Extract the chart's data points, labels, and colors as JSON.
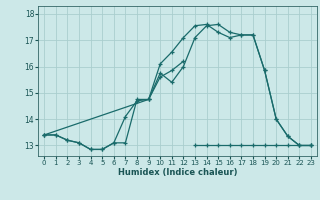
{
  "xlabel": "Humidex (Indice chaleur)",
  "bg_color": "#cce8e8",
  "grid_color": "#aacece",
  "line_color": "#1a6b6b",
  "xlim": [
    -0.5,
    23.5
  ],
  "ylim": [
    12.6,
    18.3
  ],
  "xticks": [
    0,
    1,
    2,
    3,
    4,
    5,
    6,
    7,
    8,
    9,
    10,
    11,
    12,
    13,
    14,
    15,
    16,
    17,
    18,
    19,
    20,
    21,
    22,
    23
  ],
  "yticks": [
    13,
    14,
    15,
    16,
    17,
    18
  ],
  "line1_x": [
    0,
    1,
    2,
    3,
    4,
    5,
    6,
    7,
    8,
    9,
    10,
    11,
    12
  ],
  "line1_y": [
    13.4,
    13.4,
    13.2,
    13.1,
    12.85,
    12.85,
    13.1,
    13.1,
    14.75,
    14.75,
    15.6,
    15.85,
    16.2
  ],
  "line2_x": [
    0,
    1,
    2,
    3,
    4,
    5,
    6,
    7,
    8,
    9,
    10,
    11,
    12,
    13,
    14,
    15,
    16,
    17,
    18,
    19,
    20,
    21,
    22,
    23
  ],
  "line2_y": [
    13.4,
    13.4,
    13.2,
    13.1,
    12.85,
    12.85,
    13.1,
    14.1,
    14.7,
    14.75,
    15.75,
    15.4,
    16.0,
    17.1,
    17.55,
    17.6,
    17.3,
    17.2,
    17.2,
    15.85,
    14.0,
    13.35,
    13.0,
    13.0
  ],
  "line3_x": [
    0,
    9,
    10,
    11,
    12,
    13,
    14,
    15,
    16,
    17,
    18,
    19,
    20,
    21,
    22,
    23
  ],
  "line3_y": [
    13.4,
    14.75,
    16.1,
    16.55,
    17.1,
    17.55,
    17.6,
    17.3,
    17.1,
    17.2,
    17.2,
    15.85,
    14.0,
    13.35,
    13.0,
    13.0
  ],
  "line4_x": [
    13,
    14,
    15,
    16,
    17,
    18,
    19,
    20,
    21,
    22,
    23
  ],
  "line4_y": [
    13.0,
    13.0,
    13.0,
    13.0,
    13.0,
    13.0,
    13.0,
    13.0,
    13.0,
    13.0,
    13.0
  ]
}
